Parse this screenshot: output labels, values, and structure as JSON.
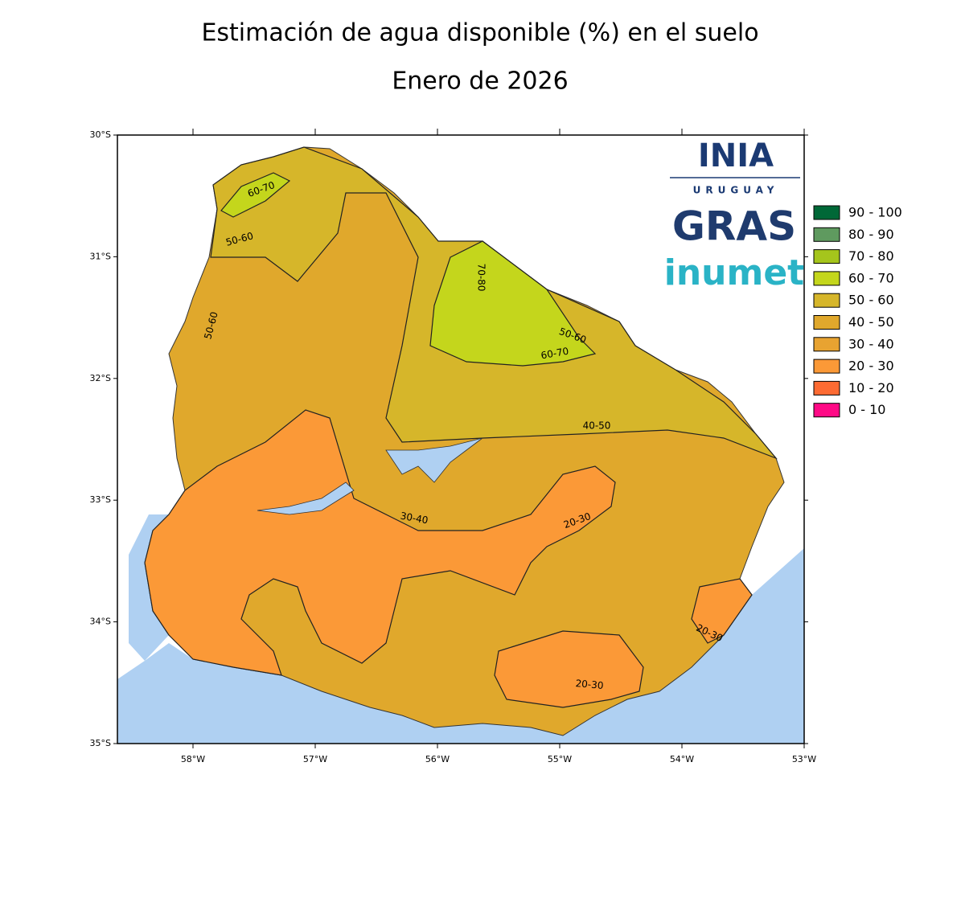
{
  "title": "Estimación de agua disponible (%) en el suelo",
  "subtitle": "Enero de 2026",
  "lat_ticks": [
    "30°S",
    "31°S",
    "32°S",
    "33°S",
    "34°S",
    "35°S"
  ],
  "lon_ticks": [
    "58°W",
    "57°W",
    "56°W",
    "55°W",
    "54°W",
    "53°W"
  ],
  "legend": [
    {
      "label": "90 - 100",
      "color": "#006837"
    },
    {
      "label": "80 - 90",
      "color": "#5f9a5f"
    },
    {
      "label": "70 - 80",
      "color": "#a5c51c"
    },
    {
      "label": "60 - 70",
      "color": "#c4d61c"
    },
    {
      "label": "50 - 60",
      "color": "#d6b62a"
    },
    {
      "label": "40 - 50",
      "color": "#e0a82c"
    },
    {
      "label": "30 - 40",
      "color": "#e8a331"
    },
    {
      "label": "20 - 30",
      "color": "#fb9937"
    },
    {
      "label": "10 - 20",
      "color": "#fd6b33"
    },
    {
      "label": "0 - 10",
      "color": "#ff0a86"
    }
  ],
  "contour_labels": [
    "60-70",
    "50-60",
    "50-60",
    "70-80",
    "50-60",
    "60-70",
    "40-50",
    "30-40",
    "20-30",
    "20-30",
    "20-30"
  ],
  "logos": [
    "INIA",
    "URUGUAY",
    "GRAS",
    "inumet"
  ]
}
